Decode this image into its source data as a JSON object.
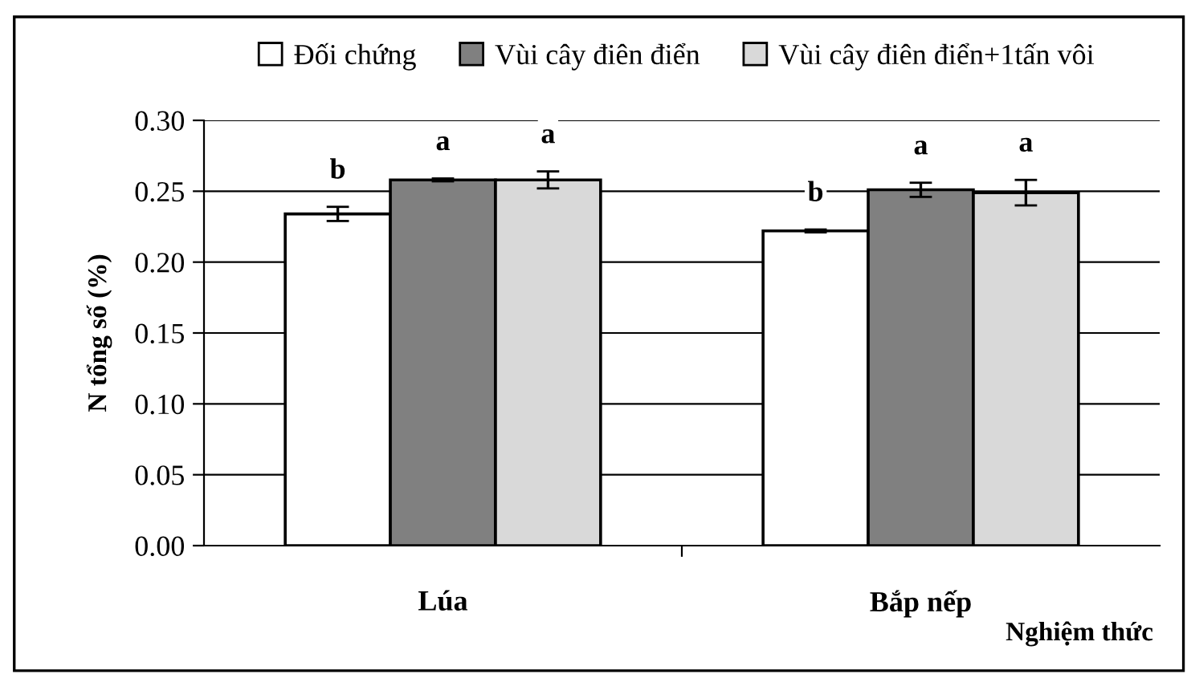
{
  "chart_data": {
    "type": "bar",
    "ylabel": "N tổng số (%)",
    "xlabel": "Nghiệm thức",
    "categories": [
      "Lúa",
      "Bắp nếp"
    ],
    "series": [
      {
        "name": "Đối chứng",
        "color": "#ffffff",
        "values": [
          0.234,
          0.222
        ],
        "errors": [
          0.005,
          0.001
        ]
      },
      {
        "name": "Vùi cây điên điển",
        "color": "#808080",
        "values": [
          0.258,
          0.251
        ],
        "errors": [
          0.001,
          0.005
        ]
      },
      {
        "name": "Vùi cây điên điển+1tấn vôi",
        "color": "#d9d9d9",
        "values": [
          0.258,
          0.249
        ],
        "errors": [
          0.006,
          0.009
        ]
      }
    ],
    "ylim": [
      0,
      0.3
    ],
    "yticks": [
      {
        "value": 0,
        "label": "0.00"
      },
      {
        "value": 0.05,
        "label": "0.05"
      },
      {
        "value": 0.1,
        "label": "0.10"
      },
      {
        "value": 0.15,
        "label": "0.15"
      },
      {
        "value": 0.2,
        "label": "0.20"
      },
      {
        "value": 0.25,
        "label": "0.25"
      },
      {
        "value": 0.3,
        "label": "0.30"
      }
    ],
    "grid": "y",
    "legend": "top",
    "annotations": [
      "b",
      "a",
      "a",
      "b",
      "a",
      "a"
    ]
  }
}
